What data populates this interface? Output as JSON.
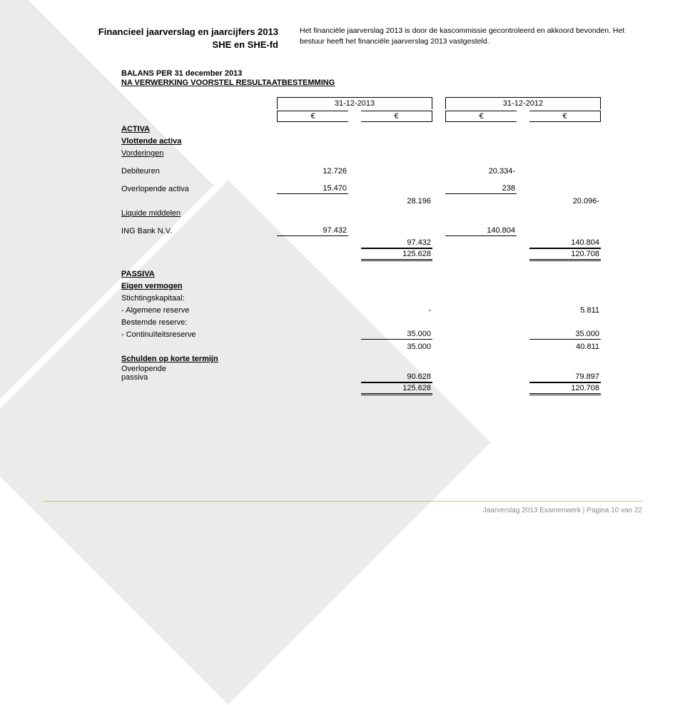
{
  "header": {
    "title_line1": "Financieel jaarverslag en jaarcijfers 2013",
    "title_line2": "SHE en SHE-fd",
    "intro": "Het financiële jaarverslag 2013 is door de kascommissie gecontroleerd en akkoord bevonden. Het bestuur heeft het financiële jaarverslag 2013 vastgesteld."
  },
  "balance": {
    "title": "BALANS PER 31 december 2013",
    "subtitle": "NA VERWERKING VOORSTEL RESULTAATBESTEMMING",
    "date_2013": "31-12-2013",
    "date_2012": "31-12-2012",
    "euro": "€",
    "activa": "ACTIVA",
    "vlottende": "Vlottende activa",
    "vorderingen": "Vorderingen",
    "debiteuren": {
      "label": "Debiteuren",
      "v2013": "12.726",
      "v2012": "20.334-"
    },
    "overlopende_activa": {
      "label": "Overlopende activa",
      "v2013": "15.470",
      "v2012": "238"
    },
    "subtotal_vord": {
      "v2013": "28.196",
      "v2012": "20.096-"
    },
    "liquide": "Liquide middelen",
    "ing": {
      "label": "ING Bank N.V.",
      "v2013": "97.432",
      "v2012": "140.804"
    },
    "subtotal_liq": {
      "v2013": "97.432",
      "v2012": "140.804"
    },
    "total_activa": {
      "v2013": "125.628",
      "v2012": "120.708"
    },
    "passiva": "PASSIVA",
    "eigen_vermogen": "Eigen vermogen",
    "stichtingskapitaal": "Stichtingskapitaal:",
    "alg_reserve": {
      "label": "- Algemene reserve",
      "v2013": "-",
      "v2012": "5.811"
    },
    "bestemde": "Bestemde reserve:",
    "cont_reserve": {
      "label": "- Continuïteitsreserve",
      "v2013": "35.000",
      "v2012": "35.000"
    },
    "subtotal_ev": {
      "v2013": "35.000",
      "v2012": "40.811"
    },
    "schulden": "Schulden op korte termijn",
    "overlopende_passiva": {
      "label": "Overlopende\npassiva",
      "v2013": "90.628",
      "v2012": "79.897"
    },
    "total_passiva": {
      "v2013": "125.628",
      "v2012": "120.708"
    }
  },
  "footer": "Jaarverslag 2013 Examenwerk | Pagina 10 van 22",
  "colors": {
    "bg_shape": "#ebebeb",
    "footer_text": "#8a8a8a",
    "footer_line": "#b8c97a"
  }
}
